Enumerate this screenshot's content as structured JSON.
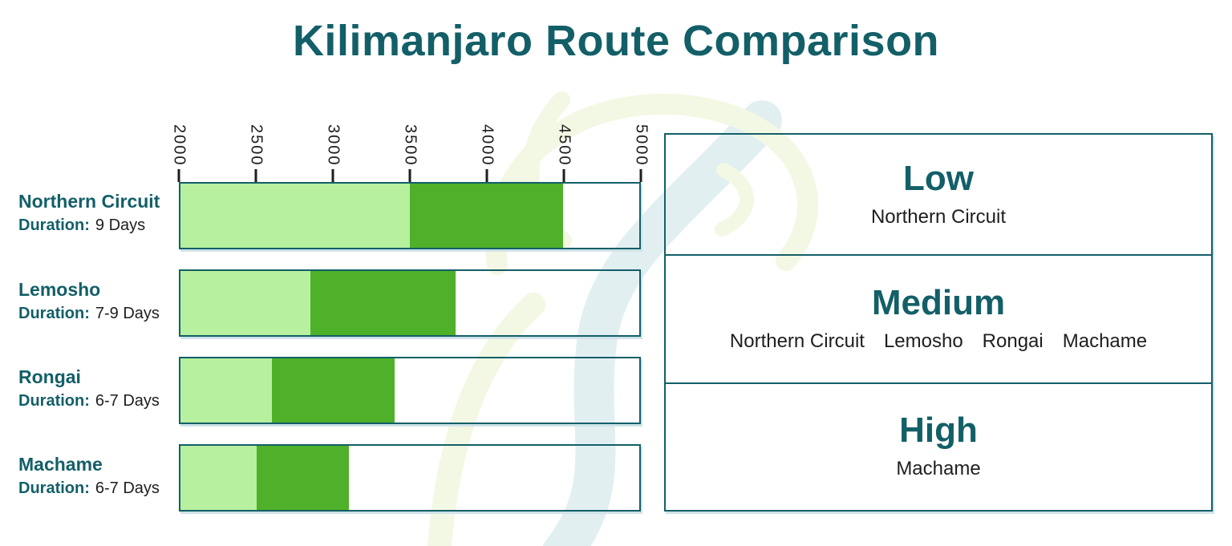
{
  "title": "Kilimanjaro Route Comparison",
  "chart_data": {
    "type": "bar",
    "orientation": "horizontal",
    "stacked": true,
    "title": "Kilimanjaro Route Comparison",
    "xlabel": "",
    "ylabel": "",
    "x_min": 2000,
    "x_max": 5000,
    "x_ticks": [
      2000,
      2500,
      3000,
      3500,
      4000,
      4500,
      5000
    ],
    "grid": false,
    "legend": false,
    "routes": [
      {
        "name": "Northern Circuit",
        "duration_label": "Duration:",
        "duration_value": "9 Days",
        "segments": [
          {
            "start": 2000,
            "end": 3500,
            "shade": "light"
          },
          {
            "start": 3500,
            "end": 4500,
            "shade": "dark"
          }
        ]
      },
      {
        "name": "Lemosho",
        "duration_label": "Duration:",
        "duration_value": "7-9 Days",
        "segments": [
          {
            "start": 2000,
            "end": 2850,
            "shade": "light"
          },
          {
            "start": 2850,
            "end": 3800,
            "shade": "dark"
          }
        ]
      },
      {
        "name": "Rongai",
        "duration_label": "Duration:",
        "duration_value": "6-7 Days",
        "segments": [
          {
            "start": 2000,
            "end": 2600,
            "shade": "light"
          },
          {
            "start": 2600,
            "end": 3400,
            "shade": "dark"
          }
        ]
      },
      {
        "name": "Machame",
        "duration_label": "Duration:",
        "duration_value": "6-7 Days",
        "segments": [
          {
            "start": 2000,
            "end": 2500,
            "shade": "light"
          },
          {
            "start": 2500,
            "end": 3100,
            "shade": "dark"
          }
        ]
      }
    ]
  },
  "levels_panel": {
    "levels": [
      {
        "label": "Low",
        "routes": [
          "Northern Circuit"
        ]
      },
      {
        "label": "Medium",
        "routes": [
          "Northern Circuit",
          "Lemosho",
          "Rongai",
          "Machame"
        ]
      },
      {
        "label": "High",
        "routes": [
          "Machame"
        ]
      }
    ]
  },
  "colors": {
    "teal": "#135f68",
    "light_green": "#b7f09e",
    "dark_green": "#4fb02a",
    "text_dark": "#1e1e1e",
    "watermark_green": "#f2f8e3",
    "watermark_teal": "#e2eff1",
    "box_shadow": "#cfe3e8"
  }
}
